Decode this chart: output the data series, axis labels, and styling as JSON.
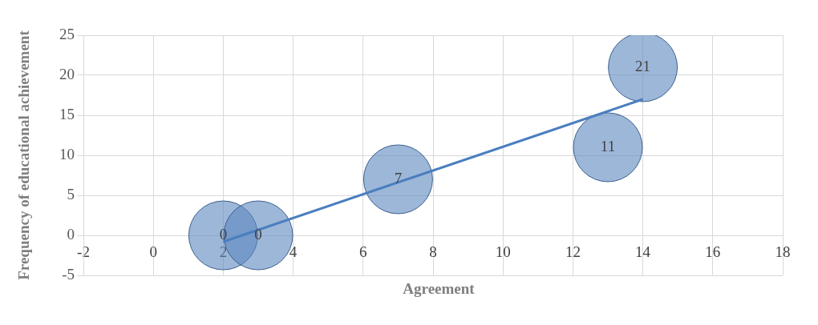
{
  "chart_data": {
    "type": "bubble",
    "xlabel": "Agreement",
    "ylabel": "Frequency of educational achievement",
    "x": [
      2,
      3,
      7,
      13,
      14
    ],
    "values": [
      0,
      0,
      7,
      11,
      21
    ],
    "sizes": [
      1,
      1,
      1,
      1,
      1
    ],
    "color": "#5b87c0",
    "value_labels": [
      "0",
      "0",
      "7",
      "11",
      "21"
    ],
    "series": [
      {
        "type": "line",
        "x": [
          2,
          14
        ],
        "values": [
          -0.8,
          17.0
        ],
        "color": "#4a7ebf"
      }
    ],
    "xlim": [
      -2,
      18
    ],
    "xticks": [
      -2,
      0,
      2,
      4,
      6,
      8,
      10,
      12,
      14,
      16,
      18
    ],
    "ylim": [
      -5,
      25
    ],
    "yticks": [
      -5,
      0,
      5,
      10,
      15,
      20,
      25
    ],
    "grid": true,
    "legend": false
  }
}
